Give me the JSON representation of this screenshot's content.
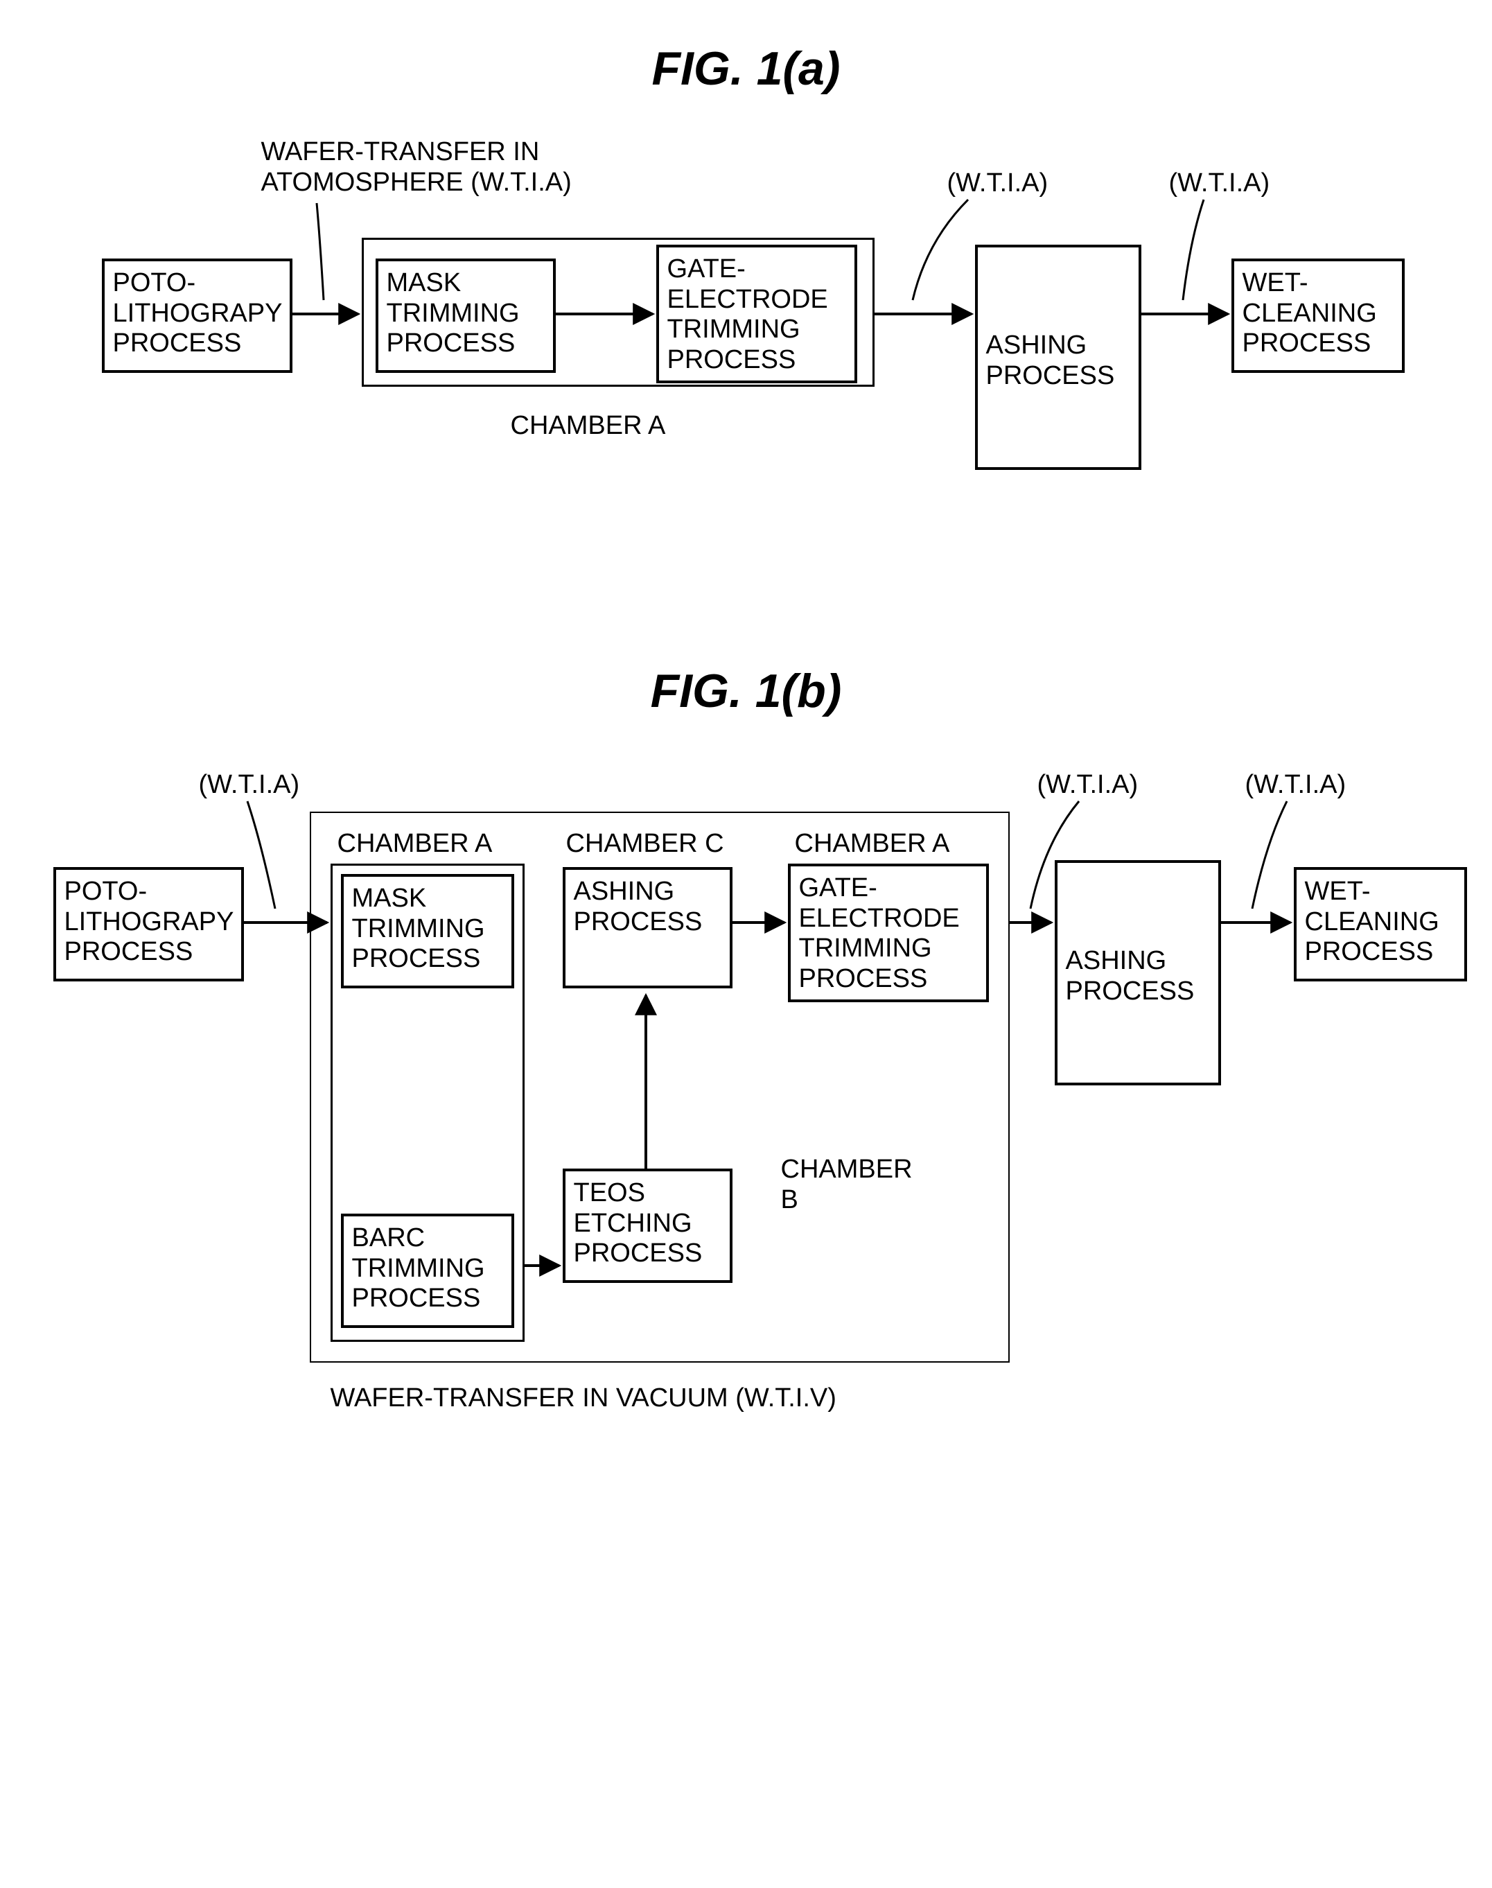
{
  "figA": {
    "title": "FIG. 1(a)",
    "title_fontsize": 68,
    "label_fontsize": 38,
    "box_fontsize": 38,
    "stroke": "#000000",
    "stroke_width": 4,
    "boxes": {
      "poto": {
        "lines": [
          "POTO-",
          "LITHOGRAPY",
          "PROCESS"
        ]
      },
      "mask": {
        "lines": [
          "MASK",
          "TRIMMING",
          "PROCESS"
        ]
      },
      "gate": {
        "lines": [
          "GATE-",
          "ELECTRODE",
          "TRIMMING",
          "PROCESS"
        ]
      },
      "ash": {
        "lines": [
          "ASHING",
          "PROCESS"
        ]
      },
      "wet": {
        "lines": [
          "WET-",
          "CLEANING",
          "PROCESS"
        ]
      }
    },
    "labels": {
      "wtia_full": [
        "WAFER-TRANSFER IN",
        "ATOMOSPHERE (W.T.I.A)"
      ],
      "wtia2": "(W.T.I.A)",
      "wtia3": "(W.T.I.A)",
      "chamberA": "CHAMBER A"
    }
  },
  "figB": {
    "title": "FIG. 1(b)",
    "title_fontsize": 68,
    "label_fontsize": 38,
    "box_fontsize": 38,
    "stroke": "#000000",
    "stroke_width": 4,
    "boxes": {
      "poto": {
        "lines": [
          "POTO-",
          "LITHOGRAPY",
          "PROCESS"
        ]
      },
      "mask": {
        "lines": [
          "MASK",
          "TRIMMING",
          "PROCESS"
        ]
      },
      "barc": {
        "lines": [
          "BARC",
          "TRIMMING",
          "PROCESS"
        ]
      },
      "teos": {
        "lines": [
          "TEOS",
          "ETCHING",
          "PROCESS"
        ]
      },
      "ashC": {
        "lines": [
          "ASHING",
          "PROCESS"
        ]
      },
      "gate": {
        "lines": [
          "GATE-",
          "ELECTRODE",
          "TRIMMING",
          "PROCESS"
        ]
      },
      "ash": {
        "lines": [
          "ASHING",
          "PROCESS"
        ]
      },
      "wet": {
        "lines": [
          "WET-",
          "CLEANING",
          "PROCESS"
        ]
      }
    },
    "labels": {
      "wtia1": "(W.T.I.A)",
      "wtia2": "(W.T.I.A)",
      "wtia3": "(W.T.I.A)",
      "chamberA1": "CHAMBER A",
      "chamberC": "CHAMBER C",
      "chamberA2": "CHAMBER A",
      "chamberB_lines": [
        "CHAMBER",
        "B"
      ],
      "wtiv": "WAFER-TRANSFER IN VACUUM (W.T.I.V)"
    }
  }
}
